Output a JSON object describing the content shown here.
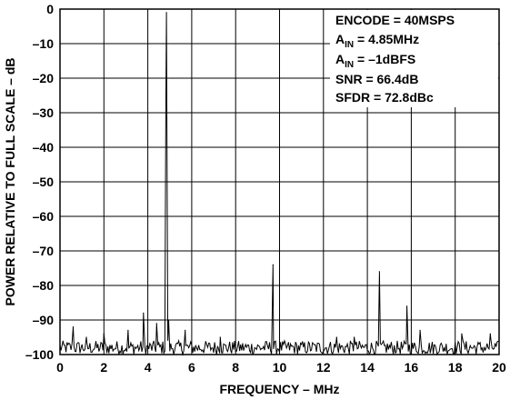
{
  "chart_data": {
    "type": "line",
    "title": "",
    "xlabel": "FREQUENCY – MHz",
    "ylabel": "POWER RELATIVE TO FULL SCALE – dB",
    "xlim": [
      0,
      20
    ],
    "ylim": [
      -100,
      0
    ],
    "x_ticks": [
      "0",
      "2",
      "4",
      "6",
      "8",
      "10",
      "12",
      "14",
      "16",
      "18",
      "20"
    ],
    "y_ticks": [
      "0",
      "–10",
      "–20",
      "–30",
      "–40",
      "–50",
      "–60",
      "–70",
      "–80",
      "–90",
      "–100"
    ],
    "grid": true,
    "annotations": {
      "line1": "ENCODE = 40MSPS",
      "line2_main": "A",
      "line2_sub": "IN",
      "line2_rest": " = 4.85MHz",
      "line3_main": "A",
      "line3_sub": "IN",
      "line3_rest": " = –1dBFS",
      "line4": "SNR = 66.4dB",
      "line5": "SFDR = 72.8dBc"
    },
    "series": [
      {
        "line_color": "#000000",
        "spurs": [
          {
            "x": 4.85,
            "y": -1
          },
          {
            "x": 9.7,
            "y": -74
          },
          {
            "x": 14.55,
            "y": -76
          },
          {
            "x": 15.8,
            "y": -86
          },
          {
            "x": 3.8,
            "y": -88
          },
          {
            "x": 0.6,
            "y": -92
          },
          {
            "x": 4.4,
            "y": -91
          },
          {
            "x": 4.95,
            "y": -90
          },
          {
            "x": 3.1,
            "y": -93
          },
          {
            "x": 2.0,
            "y": -94
          },
          {
            "x": 5.7,
            "y": -93
          },
          {
            "x": 16.4,
            "y": -93
          },
          {
            "x": 7.3,
            "y": -95
          },
          {
            "x": 12.6,
            "y": -95
          },
          {
            "x": 18.3,
            "y": -94
          },
          {
            "x": 19.6,
            "y": -94
          },
          {
            "x": 1.2,
            "y": -95
          },
          {
            "x": 13.4,
            "y": -95
          }
        ],
        "noise_floor": -98,
        "noise_range": [
          -100,
          -95
        ]
      }
    ]
  }
}
